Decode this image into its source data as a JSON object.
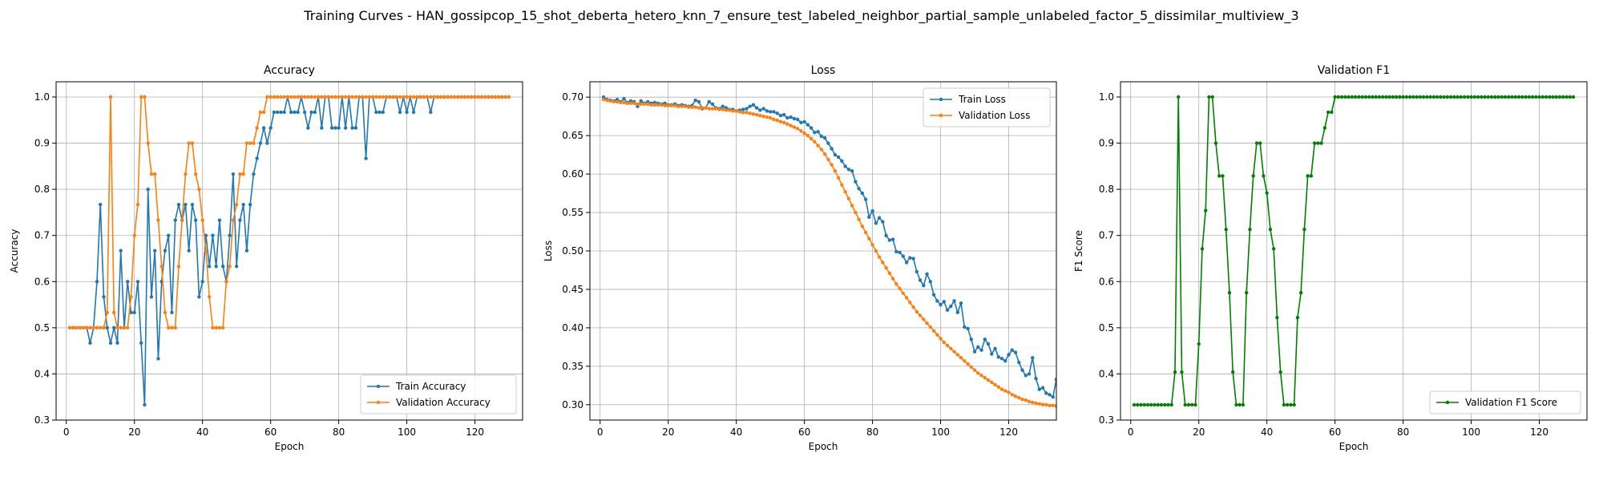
{
  "figure": {
    "suptitle": "Training Curves - HAN_gossipcop_15_shot_deberta_hetero_knn_7_ensure_test_labeled_neighbor_partial_sample_unlabeled_factor_5_dissimilar_multiview_3"
  },
  "colors": {
    "train": "#1f77b4",
    "validation": "#ff7f0e",
    "f1": "#008000",
    "grid": "#b0b0b0"
  },
  "chart_data": [
    {
      "type": "line",
      "title": "Accuracy",
      "xlabel": "Epoch",
      "ylabel": "Accuracy",
      "xlim": [
        -3,
        134
      ],
      "ylim": [
        0.3,
        1.033
      ],
      "xticks": [
        0,
        20,
        40,
        60,
        80,
        100,
        120
      ],
      "yticks": [
        0.3,
        0.4,
        0.5,
        0.6,
        0.7,
        0.8,
        0.9,
        1.0
      ],
      "ytick_labels": [
        "0.3",
        "0.4",
        "0.5",
        "0.6",
        "0.7",
        "0.8",
        "0.9",
        "1.0"
      ],
      "grid": true,
      "legend_position": "lower-right",
      "series": [
        {
          "name": "Train Accuracy",
          "color": "#1f77b4",
          "values": [
            0.5,
            0.5,
            0.5,
            0.5,
            0.5,
            0.5,
            0.467,
            0.5,
            0.6,
            0.767,
            0.567,
            0.5,
            0.467,
            0.5,
            0.467,
            0.667,
            0.5,
            0.6,
            0.533,
            0.533,
            0.6,
            0.467,
            0.333,
            0.8,
            0.567,
            0.667,
            0.433,
            0.6,
            0.667,
            0.7,
            0.533,
            0.733,
            0.767,
            0.733,
            0.767,
            0.667,
            0.767,
            0.733,
            0.567,
            0.6,
            0.7,
            0.633,
            0.7,
            0.633,
            0.733,
            0.633,
            0.6,
            0.7,
            0.833,
            0.633,
            0.733,
            0.767,
            0.667,
            0.767,
            0.833,
            0.867,
            0.9,
            0.933,
            0.9,
            0.933,
            0.967,
            0.967,
            0.967,
            0.967,
            1.0,
            0.967,
            0.967,
            0.967,
            1.0,
            0.967,
            0.933,
            0.967,
            0.967,
            1.0,
            0.933,
            1.0,
            1.0,
            0.933,
            0.933,
            0.933,
            1.0,
            0.933,
            1.0,
            0.933,
            0.933,
            1.0,
            1.0,
            0.867,
            1.0,
            1.0,
            0.967,
            0.967,
            0.967,
            1.0,
            1.0,
            1.0,
            1.0,
            0.967,
            1.0,
            0.967,
            1.0,
            0.967,
            1.0,
            1.0,
            1.0,
            1.0,
            0.967,
            1.0,
            1.0,
            1.0,
            1.0,
            1.0,
            1.0,
            1.0,
            1.0,
            1.0,
            1.0,
            1.0,
            1.0,
            1.0,
            1.0,
            1.0,
            1.0,
            1.0,
            1.0,
            1.0,
            1.0,
            1.0,
            1.0,
            1.0
          ]
        },
        {
          "name": "Validation Accuracy",
          "color": "#ff7f0e",
          "values": [
            0.5,
            0.5,
            0.5,
            0.5,
            0.5,
            0.5,
            0.5,
            0.5,
            0.5,
            0.5,
            0.5,
            0.533,
            1.0,
            0.533,
            0.5,
            0.5,
            0.5,
            0.5,
            0.567,
            0.7,
            0.767,
            1.0,
            1.0,
            0.9,
            0.833,
            0.833,
            0.733,
            0.633,
            0.533,
            0.5,
            0.5,
            0.5,
            0.633,
            0.733,
            0.833,
            0.9,
            0.9,
            0.833,
            0.8,
            0.733,
            0.667,
            0.567,
            0.5,
            0.5,
            0.5,
            0.5,
            0.6,
            0.633,
            0.733,
            0.767,
            0.833,
            0.833,
            0.9,
            0.9,
            0.9,
            0.933,
            0.967,
            0.967,
            1.0,
            1.0,
            1.0,
            1.0,
            1.0,
            1.0,
            1.0,
            1.0,
            1.0,
            1.0,
            1.0,
            1.0,
            1.0,
            1.0,
            1.0,
            1.0,
            1.0,
            1.0,
            1.0,
            1.0,
            1.0,
            1.0,
            1.0,
            1.0,
            1.0,
            1.0,
            1.0,
            1.0,
            1.0,
            1.0,
            1.0,
            1.0,
            1.0,
            1.0,
            1.0,
            1.0,
            1.0,
            1.0,
            1.0,
            1.0,
            1.0,
            1.0,
            1.0,
            1.0,
            1.0,
            1.0,
            1.0,
            1.0,
            1.0,
            1.0,
            1.0,
            1.0,
            1.0,
            1.0,
            1.0,
            1.0,
            1.0,
            1.0,
            1.0,
            1.0,
            1.0,
            1.0,
            1.0,
            1.0,
            1.0,
            1.0,
            1.0,
            1.0,
            1.0,
            1.0,
            1.0,
            1.0
          ]
        }
      ]
    },
    {
      "type": "line",
      "title": "Loss",
      "xlabel": "Epoch",
      "ylabel": "Loss",
      "xlim": [
        -3,
        134
      ],
      "ylim": [
        0.28,
        0.72
      ],
      "xticks": [
        0,
        20,
        40,
        60,
        80,
        100,
        120
      ],
      "yticks": [
        0.3,
        0.35,
        0.4,
        0.45,
        0.5,
        0.55,
        0.6,
        0.65,
        0.7
      ],
      "ytick_labels": [
        "0.30",
        "0.35",
        "0.40",
        "0.45",
        "0.50",
        "0.55",
        "0.60",
        "0.65",
        "0.70"
      ],
      "grid": true,
      "legend_position": "upper-right",
      "series": [
        {
          "name": "Train Loss",
          "color": "#1f77b4",
          "values": [
            0.7,
            0.697,
            0.696,
            0.695,
            0.697,
            0.694,
            0.698,
            0.693,
            0.695,
            0.694,
            0.688,
            0.695,
            0.692,
            0.694,
            0.692,
            0.693,
            0.692,
            0.691,
            0.692,
            0.69,
            0.69,
            0.691,
            0.689,
            0.69,
            0.689,
            0.688,
            0.689,
            0.696,
            0.694,
            0.685,
            0.686,
            0.694,
            0.691,
            0.686,
            0.685,
            0.688,
            0.686,
            0.684,
            0.684,
            0.682,
            0.683,
            0.684,
            0.685,
            0.688,
            0.69,
            0.686,
            0.683,
            0.685,
            0.682,
            0.681,
            0.681,
            0.679,
            0.676,
            0.677,
            0.673,
            0.674,
            0.672,
            0.671,
            0.667,
            0.668,
            0.664,
            0.66,
            0.654,
            0.655,
            0.649,
            0.647,
            0.64,
            0.633,
            0.625,
            0.622,
            0.617,
            0.61,
            0.606,
            0.604,
            0.59,
            0.581,
            0.575,
            0.567,
            0.544,
            0.552,
            0.536,
            0.543,
            0.538,
            0.52,
            0.514,
            0.515,
            0.499,
            0.498,
            0.493,
            0.485,
            0.491,
            0.49,
            0.473,
            0.462,
            0.455,
            0.47,
            0.46,
            0.443,
            0.435,
            0.43,
            0.434,
            0.423,
            0.428,
            0.435,
            0.42,
            0.432,
            0.401,
            0.399,
            0.385,
            0.369,
            0.375,
            0.371,
            0.385,
            0.379,
            0.366,
            0.373,
            0.362,
            0.36,
            0.357,
            0.365,
            0.371,
            0.368,
            0.355,
            0.345,
            0.338,
            0.34,
            0.361,
            0.334,
            0.32,
            0.322,
            0.315,
            0.313,
            0.31,
            0.333,
            0.328,
            0.321
          ]
        },
        {
          "name": "Validation Loss",
          "color": "#ff7f0e",
          "values": [
            0.697,
            0.696,
            0.695,
            0.694,
            0.694,
            0.693,
            0.693,
            0.692,
            0.692,
            0.692,
            0.691,
            0.691,
            0.691,
            0.691,
            0.69,
            0.69,
            0.69,
            0.69,
            0.689,
            0.689,
            0.689,
            0.689,
            0.688,
            0.688,
            0.688,
            0.687,
            0.687,
            0.687,
            0.686,
            0.686,
            0.686,
            0.685,
            0.685,
            0.685,
            0.684,
            0.684,
            0.683,
            0.683,
            0.682,
            0.682,
            0.681,
            0.68,
            0.68,
            0.679,
            0.678,
            0.677,
            0.676,
            0.675,
            0.674,
            0.673,
            0.671,
            0.67,
            0.668,
            0.667,
            0.665,
            0.663,
            0.661,
            0.659,
            0.656,
            0.653,
            0.65,
            0.646,
            0.642,
            0.637,
            0.632,
            0.626,
            0.619,
            0.612,
            0.604,
            0.595,
            0.586,
            0.577,
            0.568,
            0.559,
            0.55,
            0.541,
            0.532,
            0.524,
            0.516,
            0.508,
            0.5,
            0.492,
            0.485,
            0.478,
            0.471,
            0.464,
            0.457,
            0.451,
            0.445,
            0.439,
            0.433,
            0.427,
            0.421,
            0.416,
            0.411,
            0.406,
            0.401,
            0.396,
            0.391,
            0.386,
            0.381,
            0.377,
            0.373,
            0.369,
            0.365,
            0.361,
            0.357,
            0.353,
            0.349,
            0.345,
            0.341,
            0.338,
            0.335,
            0.332,
            0.329,
            0.326,
            0.323,
            0.32,
            0.318,
            0.316,
            0.313,
            0.311,
            0.309,
            0.307,
            0.306,
            0.304,
            0.303,
            0.302,
            0.301,
            0.3,
            0.3,
            0.299,
            0.299,
            0.298,
            0.298,
            0.297
          ]
        }
      ]
    },
    {
      "type": "line",
      "title": "Validation F1",
      "xlabel": "Epoch",
      "ylabel": "F1 Score",
      "xlim": [
        -3,
        134
      ],
      "ylim": [
        0.3,
        1.033
      ],
      "xticks": [
        0,
        20,
        40,
        60,
        80,
        100,
        120
      ],
      "yticks": [
        0.3,
        0.4,
        0.5,
        0.6,
        0.7,
        0.8,
        0.9,
        1.0
      ],
      "ytick_labels": [
        "0.3",
        "0.4",
        "0.5",
        "0.6",
        "0.7",
        "0.8",
        "0.9",
        "1.0"
      ],
      "grid": true,
      "legend_position": "lower-right",
      "series": [
        {
          "name": "Validation F1 Score",
          "color": "#008000",
          "values": [
            0.333,
            0.333,
            0.333,
            0.333,
            0.333,
            0.333,
            0.333,
            0.333,
            0.333,
            0.333,
            0.333,
            0.333,
            0.404,
            1.0,
            0.404,
            0.333,
            0.333,
            0.333,
            0.333,
            0.465,
            0.671,
            0.754,
            1.0,
            1.0,
            0.9,
            0.829,
            0.829,
            0.713,
            0.576,
            0.404,
            0.333,
            0.333,
            0.333,
            0.576,
            0.713,
            0.829,
            0.9,
            0.9,
            0.829,
            0.792,
            0.713,
            0.671,
            0.522,
            0.404,
            0.333,
            0.333,
            0.333,
            0.333,
            0.522,
            0.576,
            0.713,
            0.829,
            0.829,
            0.9,
            0.9,
            0.9,
            0.933,
            0.967,
            0.967,
            1.0,
            1.0,
            1.0,
            1.0,
            1.0,
            1.0,
            1.0,
            1.0,
            1.0,
            1.0,
            1.0,
            1.0,
            1.0,
            1.0,
            1.0,
            1.0,
            1.0,
            1.0,
            1.0,
            1.0,
            1.0,
            1.0,
            1.0,
            1.0,
            1.0,
            1.0,
            1.0,
            1.0,
            1.0,
            1.0,
            1.0,
            1.0,
            1.0,
            1.0,
            1.0,
            1.0,
            1.0,
            1.0,
            1.0,
            1.0,
            1.0,
            1.0,
            1.0,
            1.0,
            1.0,
            1.0,
            1.0,
            1.0,
            1.0,
            1.0,
            1.0,
            1.0,
            1.0,
            1.0,
            1.0,
            1.0,
            1.0,
            1.0,
            1.0,
            1.0,
            1.0,
            1.0,
            1.0,
            1.0,
            1.0,
            1.0,
            1.0,
            1.0,
            1.0,
            1.0,
            1.0
          ]
        }
      ]
    }
  ]
}
